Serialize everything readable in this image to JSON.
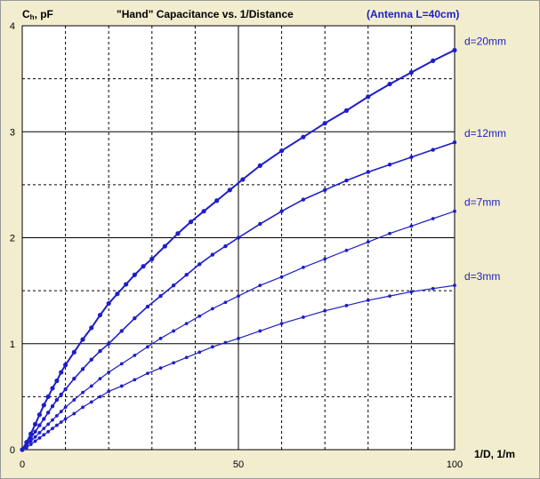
{
  "chart_data": {
    "type": "line",
    "title": "\"Hand\" Capacitance  vs.  1/Distance",
    "subtitle": "(Antenna  L=40cm)",
    "ylabel_main": "C",
    "ylabel_sub": "h",
    "ylabel_rest": ", pF",
    "xlabel": "1/D, 1/m",
    "xlim": [
      0,
      100
    ],
    "ylim": [
      0,
      4
    ],
    "x_ticks": [
      "0",
      "50",
      "100"
    ],
    "x_tick_values": [
      0,
      50,
      100
    ],
    "y_ticks": [
      "0",
      "1",
      "2",
      "3",
      "4"
    ],
    "y_tick_values": [
      0,
      1,
      2,
      3,
      4
    ],
    "grid": true,
    "colors": {
      "series": "#1E1EC8",
      "background": "#F2EDCE",
      "plot_bg": "#FFFFFF"
    },
    "series": [
      {
        "name": "d=20mm",
        "x": [
          0,
          1,
          2,
          3,
          4,
          5,
          6,
          7,
          8,
          9,
          10,
          12,
          14,
          16,
          18,
          20,
          22,
          24,
          26,
          28,
          30,
          33,
          36,
          39,
          42,
          45,
          48,
          51,
          55,
          60,
          65,
          70,
          75,
          80,
          85,
          90,
          95,
          100
        ],
        "y": [
          0,
          0.07,
          0.15,
          0.24,
          0.33,
          0.42,
          0.5,
          0.58,
          0.65,
          0.73,
          0.8,
          0.92,
          1.04,
          1.15,
          1.27,
          1.38,
          1.47,
          1.56,
          1.65,
          1.73,
          1.8,
          1.92,
          2.04,
          2.15,
          2.25,
          2.35,
          2.45,
          2.55,
          2.68,
          2.82,
          2.95,
          3.08,
          3.2,
          3.33,
          3.45,
          3.56,
          3.67,
          3.77
        ]
      },
      {
        "name": "d=12mm",
        "x": [
          0,
          1,
          2,
          3,
          4,
          5,
          6,
          7,
          8,
          9,
          10,
          12,
          14,
          16,
          18,
          20,
          23,
          26,
          29,
          32,
          35,
          38,
          41,
          44,
          47,
          50,
          55,
          60,
          65,
          70,
          75,
          80,
          85,
          90,
          95,
          100
        ],
        "y": [
          0,
          0.05,
          0.11,
          0.17,
          0.23,
          0.29,
          0.35,
          0.41,
          0.47,
          0.52,
          0.57,
          0.67,
          0.76,
          0.85,
          0.93,
          1.0,
          1.12,
          1.24,
          1.35,
          1.45,
          1.55,
          1.65,
          1.75,
          1.84,
          1.92,
          2.0,
          2.13,
          2.25,
          2.36,
          2.45,
          2.54,
          2.62,
          2.69,
          2.76,
          2.83,
          2.9
        ]
      },
      {
        "name": "d=7mm",
        "x": [
          0,
          1,
          2,
          3,
          4,
          5,
          6,
          7,
          8,
          9,
          10,
          12,
          14,
          16,
          18,
          20,
          23,
          26,
          29,
          32,
          35,
          38,
          41,
          44,
          47,
          50,
          55,
          60,
          65,
          70,
          75,
          80,
          85,
          90,
          95,
          100
        ],
        "y": [
          0,
          0.04,
          0.08,
          0.12,
          0.16,
          0.2,
          0.24,
          0.28,
          0.32,
          0.36,
          0.4,
          0.47,
          0.54,
          0.6,
          0.67,
          0.73,
          0.81,
          0.89,
          0.97,
          1.05,
          1.12,
          1.19,
          1.26,
          1.33,
          1.39,
          1.45,
          1.55,
          1.63,
          1.72,
          1.8,
          1.88,
          1.96,
          2.04,
          2.11,
          2.18,
          2.25
        ]
      },
      {
        "name": "d=3mm",
        "x": [
          0,
          1,
          2,
          3,
          4,
          5,
          6,
          7,
          8,
          9,
          10,
          12,
          14,
          16,
          18,
          20,
          23,
          26,
          29,
          32,
          35,
          38,
          41,
          44,
          47,
          50,
          55,
          60,
          65,
          70,
          75,
          80,
          85,
          90,
          95,
          100
        ],
        "y": [
          0,
          0.02,
          0.05,
          0.08,
          0.11,
          0.14,
          0.17,
          0.2,
          0.23,
          0.26,
          0.29,
          0.34,
          0.4,
          0.45,
          0.5,
          0.55,
          0.6,
          0.66,
          0.72,
          0.77,
          0.82,
          0.87,
          0.92,
          0.97,
          1.01,
          1.05,
          1.12,
          1.19,
          1.25,
          1.31,
          1.36,
          1.41,
          1.45,
          1.49,
          1.52,
          1.55
        ]
      }
    ]
  }
}
